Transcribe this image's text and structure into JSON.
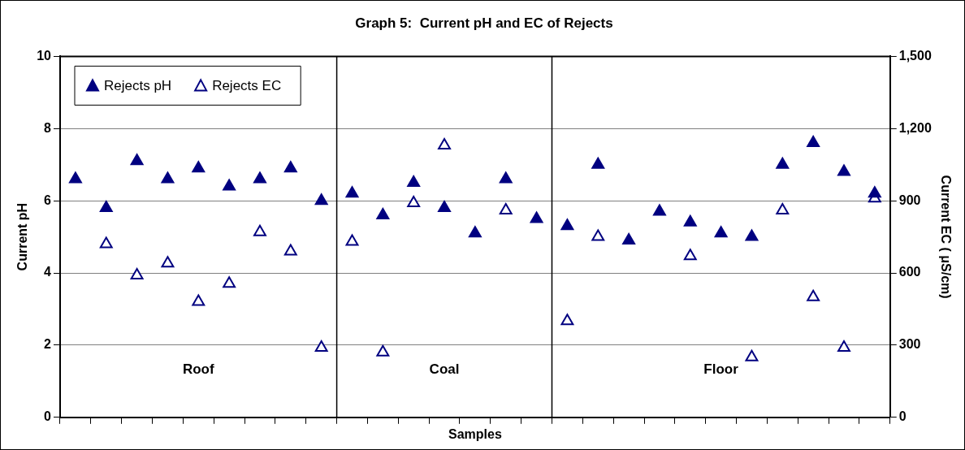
{
  "chart_data": {
    "type": "scatter",
    "title": "Graph 5:  Current pH and EC of Rejects",
    "xlabel": "Samples",
    "ylabel": "Current pH",
    "y2label": "Current EC ( μS/cm)",
    "categories": [
      null,
      null,
      null,
      null,
      null,
      null,
      null,
      null,
      null,
      null,
      null,
      null,
      null,
      null,
      null,
      null,
      null,
      null,
      null,
      null,
      null,
      null,
      null,
      null,
      null,
      null,
      null
    ],
    "ylim": [
      0,
      10
    ],
    "yticks": [
      0,
      2,
      4,
      6,
      8,
      10
    ],
    "y2lim": [
      0,
      1500
    ],
    "y2ticks": [
      0,
      300,
      600,
      900,
      {
        "value": 1200,
        "label": "1,200"
      },
      {
        "value": 1500,
        "label": "1,500"
      }
    ],
    "series": [
      {
        "name": "Rejects pH",
        "color": "#000080",
        "values": [
          6.6,
          5.8,
          7.1,
          6.6,
          6.9,
          6.4,
          6.6,
          6.9,
          6.0,
          6.2,
          5.6,
          6.5,
          5.8,
          5.1,
          6.6,
          5.5,
          5.3,
          7.0,
          4.9,
          5.7,
          5.4,
          5.1,
          5.0,
          7.0,
          7.6,
          6.8,
          6.2
        ]
      },
      {
        "name": "Rejects EC",
        "color": "#000080",
        "axis": "y2",
        "values": [
          null,
          720,
          590,
          640,
          480,
          555,
          770,
          690,
          290,
          730,
          270,
          890,
          1130,
          null,
          860,
          null,
          400,
          750,
          null,
          null,
          670,
          null,
          250,
          860,
          500,
          290,
          910
        ]
      }
    ],
    "annotations": [
      "Roof",
      "Coal",
      "Floor"
    ],
    "grid": "y",
    "legend": "top left",
    "marker": "triangle",
    "tick_labels": "y"
  }
}
